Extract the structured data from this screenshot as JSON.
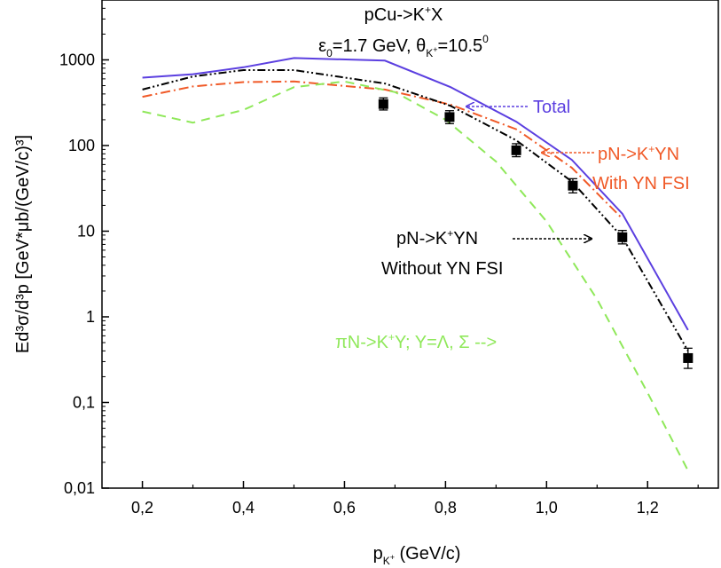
{
  "chart_data": {
    "type": "line",
    "title_line1": {
      "main": "pCu->K",
      "sup": "+",
      "tail": "X"
    },
    "title_line2": {
      "eps": "ε",
      "eps_sub": "0",
      "eps_value": "=1.7 GeV, ",
      "theta": "θ",
      "theta_sub": "K",
      "theta_subsup": "+",
      "theta_value": "=10.5",
      "theta_sup": "0"
    },
    "xlabel": {
      "main": "p",
      "sub": "K",
      "subsup": "+",
      "tail": " (GeV/c)"
    },
    "ylabel": "Ed³σ/d³p [GeV*μb/(GeV/c)³]",
    "xlim": [
      0.12,
      1.34
    ],
    "ylim": [
      0.01,
      5000
    ],
    "yscale": "log",
    "x_ticks": [
      {
        "value": 0.2,
        "label": "0,2"
      },
      {
        "value": 0.4,
        "label": "0,4"
      },
      {
        "value": 0.6,
        "label": "0,6"
      },
      {
        "value": 0.8,
        "label": "0,8"
      },
      {
        "value": 1.0,
        "label": "1,0"
      },
      {
        "value": 1.2,
        "label": "1,2"
      }
    ],
    "y_ticks": [
      {
        "value": 0.01,
        "label": "0,01"
      },
      {
        "value": 0.1,
        "label": "0,1"
      },
      {
        "value": 1,
        "label": "1"
      },
      {
        "value": 10,
        "label": "10"
      },
      {
        "value": 100,
        "label": "100"
      },
      {
        "value": 1000,
        "label": "1000"
      }
    ],
    "series": [
      {
        "name": "Total",
        "color": "#5b3fe0",
        "dash": "solid",
        "x": [
          0.2,
          0.3,
          0.4,
          0.5,
          0.68,
          0.81,
          0.94,
          1.05,
          1.15,
          1.28
        ],
        "y": [
          620,
          680,
          820,
          1050,
          980,
          480,
          190,
          68,
          16,
          0.7
        ]
      },
      {
        "name": "pN->K+YN With YN FSI",
        "color": "#f05a28",
        "dash": "dashdot",
        "x": [
          0.2,
          0.3,
          0.4,
          0.5,
          0.68,
          0.81,
          0.94,
          1.05,
          1.15
        ],
        "y": [
          370,
          490,
          550,
          560,
          450,
          300,
          155,
          55,
          14
        ]
      },
      {
        "name": "pN->K+YN Without YN FSI",
        "color": "#000000",
        "dash": "dashdotdot",
        "x": [
          0.2,
          0.3,
          0.4,
          0.5,
          0.68,
          0.81,
          0.94,
          1.05,
          1.15,
          1.28
        ],
        "y": [
          450,
          640,
          760,
          760,
          530,
          290,
          115,
          38,
          8.5,
          0.4
        ]
      },
      {
        "name": "πN->K+Y; Y=Λ, Σ",
        "color": "#8fe85a",
        "dash": "dash",
        "x": [
          0.2,
          0.3,
          0.4,
          0.5,
          0.6,
          0.7,
          0.8,
          0.9,
          1.0,
          1.1,
          1.2,
          1.28
        ],
        "y": [
          250,
          185,
          260,
          480,
          560,
          420,
          200,
          65,
          13,
          1.6,
          0.13,
          0.016
        ]
      }
    ],
    "data_points": {
      "x": [
        0.677,
        0.808,
        0.94,
        1.052,
        1.15,
        1.28
      ],
      "y": [
        305,
        215,
        88,
        34,
        8.5,
        0.33
      ],
      "yerr_up": [
        360,
        255,
        105,
        41,
        10.2,
        0.43
      ],
      "yerr_down": [
        260,
        180,
        74,
        28,
        7.1,
        0.25
      ]
    },
    "annotations": {
      "total": {
        "text": "Total",
        "color": "#5b3fe0"
      },
      "with_fsi": {
        "line1_main": "pN->K",
        "line1_sup": "+",
        "line1_tail": "YN",
        "line2": "With YN FSI",
        "color": "#f05a28"
      },
      "without_fsi": {
        "line1_main": "pN->K",
        "line1_sup": "+",
        "line1_tail": "YN",
        "line2": "Without YN FSI",
        "color": "#000000"
      },
      "pion": {
        "text_main": "πN->K",
        "sup": "+",
        "text_tail": "Y; Y=Λ, Σ -->",
        "color": "#8fe85a"
      }
    }
  }
}
